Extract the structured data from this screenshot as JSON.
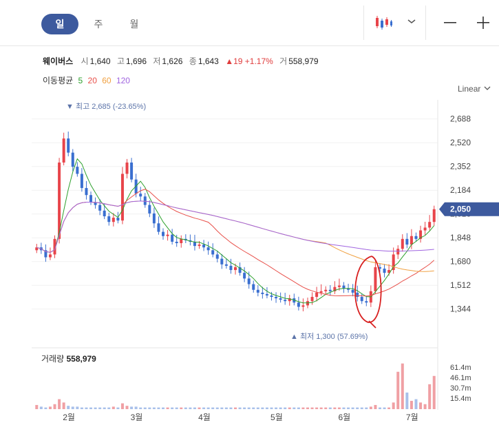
{
  "toolbar": {
    "periods": [
      "일",
      "주",
      "월"
    ],
    "active_period": "일",
    "chart_type_icon": "candlestick-icon",
    "dropdown_icon": "chevron-down-icon",
    "zoom_out_icon": "minus-icon",
    "zoom_in_icon": "plus-icon"
  },
  "stock": {
    "name": "웨이버스",
    "open_label": "시",
    "open": "1,640",
    "high_label": "고",
    "high": "1,696",
    "low_label": "저",
    "low": "1,626",
    "close_label": "종",
    "close": "1,643",
    "change": "▲19 +1.17%",
    "volume_label": "거",
    "volume": "558,979"
  },
  "moving_average": {
    "label": "이동평균",
    "periods": [
      "5",
      "20",
      "60",
      "120"
    ],
    "colors": {
      "5": "#2ca02c",
      "20": "#e8504a",
      "60": "#f0a040",
      "120": "#a064e0"
    }
  },
  "scale_mode": "Linear",
  "colors": {
    "up": "#e8444a",
    "down": "#3a6fd0",
    "accent": "#3d5a9e",
    "current": "#3d5a9e"
  },
  "chart_data": {
    "type": "candlestick",
    "y_ticks": [
      "2,688",
      "2,520",
      "2,352",
      "2,184",
      "2,016",
      "1,848",
      "1,680",
      "1,512",
      "1,344"
    ],
    "y_range": [
      1250,
      2750
    ],
    "x_labels": [
      "2월",
      "3월",
      "4월",
      "5월",
      "6월",
      "7월"
    ],
    "current_price_label": "2,050",
    "max_label": "최고 2,685 (-23.65%)",
    "min_label": "최저 1,300 (57.69%)",
    "volume_label": "거래량",
    "volume_value": "558,979",
    "volume_ticks": [
      "61.4m",
      "46.1m",
      "30.7m",
      "15.4m"
    ],
    "close": [
      1780,
      1760,
      1710,
      1730,
      1840,
      2380,
      2550,
      2450,
      2350,
      2300,
      2200,
      2150,
      2100,
      2080,
      2040,
      2000,
      1960,
      1990,
      1970,
      2300,
      2380,
      2260,
      2160,
      2140,
      2080,
      2020,
      1950,
      1890,
      1860,
      1870,
      1820,
      1810,
      1840,
      1830,
      1820,
      1790,
      1800,
      1780,
      1760,
      1730,
      1700,
      1660,
      1650,
      1620,
      1640,
      1600,
      1560,
      1520,
      1480,
      1460,
      1450,
      1440,
      1430,
      1420,
      1410,
      1400,
      1420,
      1390,
      1360,
      1370,
      1400,
      1430,
      1460,
      1470,
      1480,
      1470,
      1500,
      1510,
      1490,
      1480,
      1460,
      1430,
      1400,
      1390,
      1470,
      1640,
      1630,
      1600,
      1620,
      1730,
      1770,
      1840,
      1800,
      1860,
      1840,
      1900,
      1920,
      1960,
      2050
    ],
    "volume": [
      5,
      3,
      2,
      3,
      6,
      12,
      8,
      4,
      3,
      3,
      2,
      2,
      2,
      2,
      2,
      2,
      2,
      3,
      2,
      7,
      4,
      3,
      3,
      2,
      2,
      2,
      2,
      2,
      2,
      2,
      2,
      2,
      2,
      2,
      2,
      2,
      2,
      2,
      2,
      2,
      2,
      2,
      2,
      2,
      2,
      2,
      2,
      2,
      2,
      2,
      2,
      2,
      2,
      2,
      2,
      2,
      2,
      2,
      2,
      2,
      2,
      2,
      2,
      2,
      2,
      2,
      2,
      2,
      2,
      2,
      2,
      2,
      2,
      2,
      3,
      5,
      2,
      2,
      2,
      8,
      45,
      55,
      20,
      10,
      12,
      8,
      6,
      30,
      40
    ],
    "vol_max": 61.4
  }
}
